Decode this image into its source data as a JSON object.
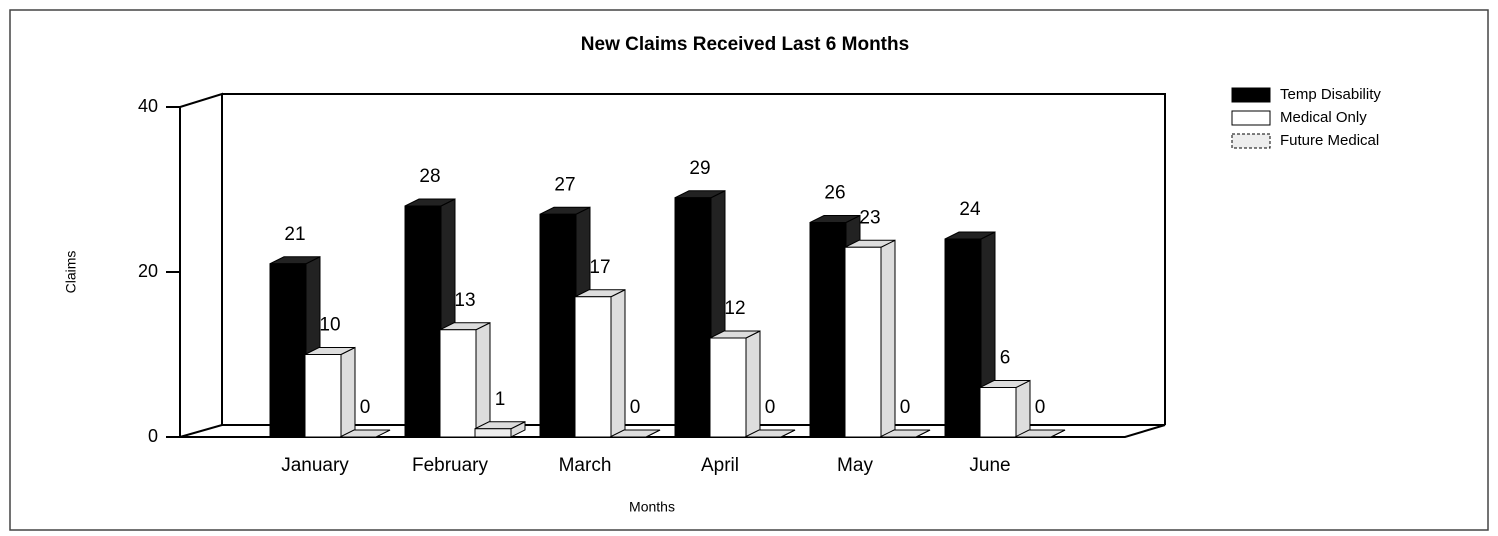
{
  "chart_data": {
    "type": "bar3d",
    "title": "New Claims Received Last 6 Months",
    "x_label": "Months",
    "y_label": "Claims",
    "categories": [
      "January",
      "February",
      "March",
      "April",
      "May",
      "June"
    ],
    "series": [
      {
        "name": "Temp Disability",
        "color": "#000000",
        "values": [
          21,
          28,
          27,
          29,
          26,
          24
        ]
      },
      {
        "name": "Medical Only",
        "color": "#ffffff",
        "values": [
          10,
          13,
          17,
          12,
          23,
          6
        ]
      },
      {
        "name": "Future Medical",
        "color": "#eeeeee",
        "values": [
          0,
          1,
          0,
          0,
          0,
          0
        ]
      }
    ],
    "ylim": [
      0,
      40
    ],
    "yticks": [
      0,
      20,
      40
    ],
    "legend": "top-right"
  }
}
